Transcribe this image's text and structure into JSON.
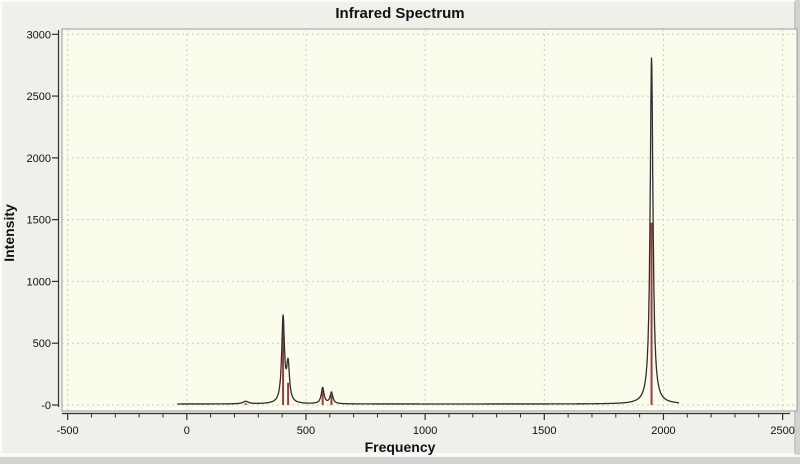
{
  "window": {
    "background_color": "#f0efe9"
  },
  "chart_data": {
    "type": "line",
    "title": "Infrared Spectrum",
    "xlabel": "Frequency",
    "ylabel": "Intensity",
    "xlim": [
      -500,
      2500
    ],
    "ylim": [
      0,
      3000
    ],
    "x_tick_values": [
      -500,
      0,
      500,
      1000,
      1500,
      2000,
      2500
    ],
    "x_tick_labels": [
      "-500",
      "0",
      "500",
      "1000",
      "1500",
      "2000",
      "2500"
    ],
    "x_minor_tick_step": 100,
    "y_tick_values": [
      3000,
      2500,
      2000,
      1500,
      1000,
      500,
      0
    ],
    "y_tick_labels": [
      "3000",
      "2500",
      "2000",
      "1500",
      "1000",
      "500",
      "-0"
    ],
    "grid": {
      "style": "dashed",
      "color": "#cccccc",
      "on": true
    },
    "legend": "none",
    "canvas_color": "#fcfcec",
    "canvas_border_color": "#9a9a9a",
    "axis_color": "#2f2f2f",
    "curve_color": "#2e2e2e",
    "stick_color": "#9a3e3e",
    "curve": {
      "model": "sum-of-lorentzians",
      "gamma": 7,
      "baseline": 8,
      "x_start": -40,
      "x_end": 2065
    },
    "peaks": [
      {
        "frequency": 247,
        "curve_height": 20,
        "stick_intensity": 14,
        "gamma": 14
      },
      {
        "frequency": 404,
        "curve_height": 690,
        "stick_intensity": 625,
        "gamma": 7
      },
      {
        "frequency": 425,
        "curve_height": 300,
        "stick_intensity": 180,
        "gamma": 7
      },
      {
        "frequency": 570,
        "curve_height": 130,
        "stick_intensity": 118,
        "gamma": 7
      },
      {
        "frequency": 607,
        "curve_height": 92,
        "stick_intensity": 82,
        "gamma": 7
      },
      {
        "frequency": 1950,
        "curve_height": 2800,
        "stick_intensity": 1475,
        "gamma": 7
      }
    ]
  }
}
